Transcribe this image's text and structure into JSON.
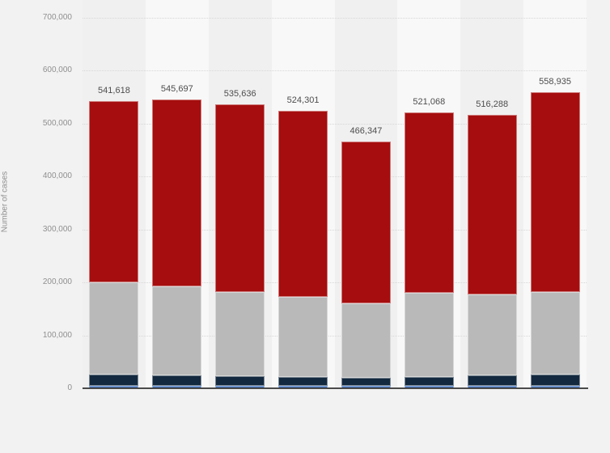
{
  "page": {
    "background_color": "#f2f2f2",
    "band_dark_color": "#f0f0f0",
    "band_light_color": "#f8f8f8",
    "gridline_color": "#d7d7d7",
    "axis_line_color": "#4a4a4a",
    "tick_label_color": "#8f8f8f",
    "value_label_color": "#4d4d4d"
  },
  "chart_data": {
    "type": "bar",
    "stacked": true,
    "orientation": "vertical",
    "title": "",
    "xlabel": "",
    "ylabel": "Number of cases",
    "legend": "none",
    "grid": "horizontal dotted",
    "ylim": [
      0,
      700000
    ],
    "ytick_interval": 100000,
    "ytick_labels": [
      "0",
      "100,000",
      "200,000",
      "300,000",
      "400,000",
      "500,000",
      "600,000",
      "700,000"
    ],
    "categories": [
      "",
      "",
      "",
      "",
      "",
      "",
      "",
      ""
    ],
    "totals": [
      541618,
      545697,
      535636,
      524301,
      466347,
      521068,
      516288,
      558935
    ],
    "total_labels": [
      "541,618",
      "545,697",
      "535,636",
      "524,301",
      "466,347",
      "521,068",
      "516,288",
      "558,935"
    ],
    "stack_order": "bottom-to-top",
    "series": [
      {
        "name": "segment-blue",
        "color": "#3a70c4",
        "values": [
          5000,
          5000,
          5000,
          5000,
          5000,
          5000,
          5000,
          5000
        ]
      },
      {
        "name": "segment-navy",
        "color": "#13293f",
        "values": [
          21000,
          19000,
          18000,
          16000,
          15000,
          16000,
          19000,
          21000
        ]
      },
      {
        "name": "segment-gray",
        "color": "#b9b9b9",
        "values": [
          174000,
          168000,
          158000,
          152000,
          140000,
          159000,
          153000,
          156000
        ]
      },
      {
        "name": "segment-red",
        "color": "#a60d0e",
        "values": [
          341618,
          353697,
          354636,
          351301,
          306347,
          341068,
          339288,
          376935
        ]
      }
    ]
  }
}
